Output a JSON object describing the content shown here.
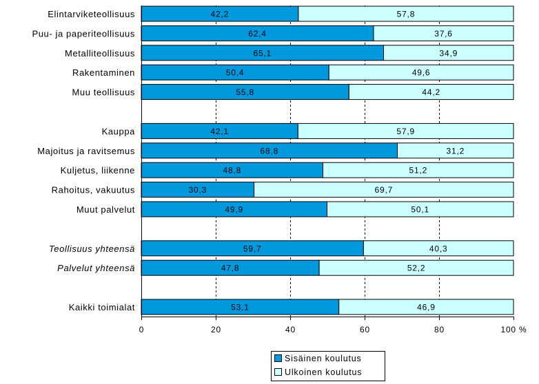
{
  "chart_data": {
    "type": "bar",
    "orientation": "horizontal",
    "stacked": true,
    "categories": [
      "Elintarviketeollisuus",
      "Puu- ja paperiteollisuus",
      "Metalliteollisuus",
      "Rakentaminen",
      "Muu teollisuus",
      "Kauppa",
      "Majoitus ja ravitsemus",
      "Kuljetus, liikenne",
      "Rahoitus, vakuutus",
      "Muut palvelut",
      "Teollisuus yhteensä",
      "Palvelut yhteensä",
      "Kaikki toimialat"
    ],
    "series": [
      {
        "name": "Sisäinen koulutus",
        "color": "#0099DD",
        "values": [
          42.2,
          62.4,
          65.1,
          50.4,
          55.8,
          42.1,
          68.8,
          48.8,
          30.3,
          49.9,
          59.7,
          47.8,
          53.1
        ],
        "labels": [
          "42,2",
          "62,4",
          "65,1",
          "50,4",
          "55,8",
          "42,1",
          "68,8",
          "48,8",
          "30,3",
          "49,9",
          "59,7",
          "47,8",
          "53,1"
        ]
      },
      {
        "name": "Ulkoinen koulutus",
        "color": "#CCFFFF",
        "values": [
          57.8,
          37.6,
          34.9,
          49.6,
          44.2,
          57.9,
          31.2,
          51.2,
          69.7,
          50.1,
          40.3,
          52.2,
          46.9
        ],
        "labels": [
          "57,8",
          "37,6",
          "34,9",
          "49,6",
          "44,2",
          "57,9",
          "31,2",
          "51,2",
          "69,7",
          "50,1",
          "40,3",
          "52,2",
          "46,9"
        ]
      }
    ],
    "xlim": [
      0,
      100
    ],
    "x_ticks": [
      0,
      20,
      40,
      60,
      80,
      100
    ],
    "x_tick_labels": [
      "0",
      "20",
      "40",
      "60",
      "80",
      "100 %"
    ],
    "grid": true,
    "legend": "bottom"
  }
}
